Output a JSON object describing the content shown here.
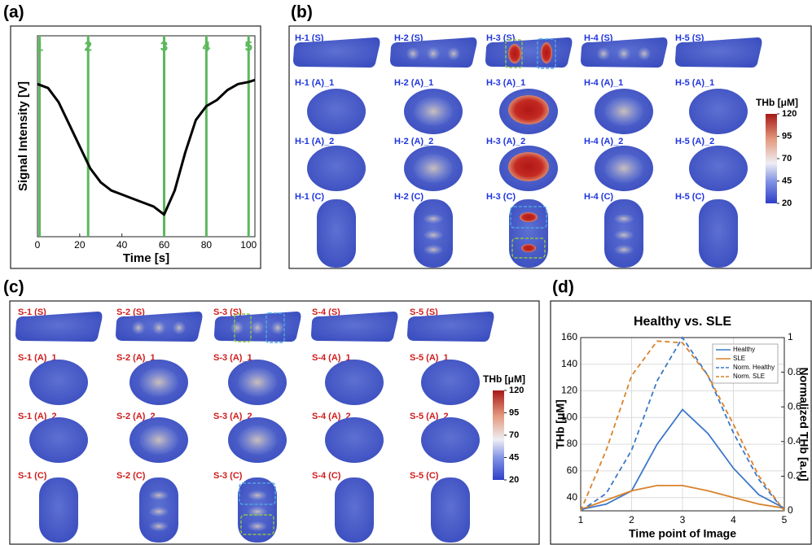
{
  "panel_labels": [
    "(a)",
    "(b)",
    "(c)",
    "(d)"
  ],
  "chart_data": [
    {
      "type": "line",
      "xlabel": "Time [s]",
      "ylabel": "Signal Intensity [V]",
      "x": [
        0,
        5,
        10,
        15,
        20,
        25,
        30,
        35,
        40,
        45,
        50,
        55,
        60,
        65,
        70,
        75,
        80,
        85,
        90,
        95,
        100,
        103
      ],
      "values": [
        0.76,
        0.74,
        0.67,
        0.56,
        0.45,
        0.34,
        0.27,
        0.23,
        0.21,
        0.19,
        0.17,
        0.15,
        0.11,
        0.23,
        0.42,
        0.58,
        0.65,
        0.68,
        0.73,
        0.76,
        0.77,
        0.78
      ],
      "color": "#000000",
      "xlim": [
        0,
        103
      ],
      "xticks": [
        0,
        20,
        40,
        60,
        80,
        100
      ],
      "ylim": [
        0,
        1
      ],
      "markers": {
        "x": [
          1,
          24,
          60,
          80,
          100
        ],
        "labels": [
          "1",
          "2",
          "3",
          "4",
          "5"
        ],
        "color": "#5cb85c"
      }
    },
    {
      "type": "line",
      "title": "Healthy vs. SLE",
      "xlabel": "Time point of Image",
      "ylabel": "THb [μM]",
      "y2label": "Normalized THb [a.u]",
      "x": [
        1,
        1.5,
        2,
        2.5,
        3,
        3.5,
        4,
        4.5,
        5
      ],
      "xlim": [
        1,
        5
      ],
      "xticks": [
        1,
        2,
        3,
        4,
        5
      ],
      "ylim": [
        30,
        160
      ],
      "yticks": [
        40,
        60,
        80,
        100,
        120,
        140,
        160
      ],
      "y2lim": [
        0,
        1
      ],
      "y2ticks": [
        0,
        0.2,
        0.4,
        0.6,
        0.8,
        1
      ],
      "grid": true,
      "legend": "upper right",
      "series": [
        {
          "name": "Healthy",
          "color": "#3c78c8",
          "linestyle": "solid",
          "values": [
            31,
            35,
            45,
            80,
            106,
            88,
            62,
            42,
            32
          ]
        },
        {
          "name": "SLE",
          "color": "#d9822b",
          "linestyle": "solid",
          "values": [
            31,
            38,
            45,
            49,
            49,
            45,
            40,
            35,
            32
          ]
        },
        {
          "name": "Norm. Healthy",
          "color": "#3c78c8",
          "linestyle": "dashed",
          "axis": "y2",
          "values": [
            0,
            0.1,
            0.35,
            0.75,
            1,
            0.78,
            0.45,
            0.18,
            0
          ]
        },
        {
          "name": "Norm. SLE",
          "color": "#d9822b",
          "linestyle": "dashed",
          "axis": "y2",
          "values": [
            0,
            0.35,
            0.78,
            0.98,
            0.97,
            0.78,
            0.5,
            0.2,
            0
          ]
        }
      ]
    }
  ],
  "healthy_grid": {
    "label_color": "#1f35e0",
    "labels": [
      [
        "H-1 (S)",
        "H-2 (S)",
        "H-3 (S)",
        "H-4 (S)",
        "H-5 (S)"
      ],
      [
        "H-1 (A)_1",
        "H-2 (A)_1",
        "H-3 (A)_1",
        "H-4 (A)_1",
        "H-5 (A)_1"
      ],
      [
        "H-1 (A)_2",
        "H-2 (A)_2",
        "H-3 (A)_2",
        "H-4 (A)_2",
        "H-5 (A)_2"
      ],
      [
        "H-1 (C)",
        "H-2 (C)",
        "H-3 (C)",
        "H-4 (C)",
        "H-5 (C)"
      ]
    ],
    "colorbar": {
      "title": "THb [μM]",
      "range": [
        20,
        120
      ],
      "ticks": [
        20,
        45,
        70,
        95,
        120
      ]
    }
  },
  "sle_grid": {
    "label_color": "#d01c1c",
    "labels": [
      [
        "S-1 (S)",
        "S-2 (S)",
        "S-3 (S)",
        "S-4 (S)",
        "S-5 (S)"
      ],
      [
        "S-1 (A)_1",
        "S-2 (A)_1",
        "S-3 (A)_1",
        "S-4 (A)_1",
        "S-5 (A)_1"
      ],
      [
        "S-1 (A)_2",
        "S-2 (A)_2",
        "S-3 (A)_2",
        "S-4 (A)_2",
        "S-5 (A)_2"
      ],
      [
        "S-1 (C)",
        "S-2 (C)",
        "S-3 (C)",
        "S-4 (C)",
        "S-5 (C)"
      ]
    ],
    "colorbar": {
      "title": "THb [μM]",
      "range": [
        20,
        120
      ],
      "ticks": [
        20,
        45,
        70,
        95,
        120
      ]
    }
  }
}
